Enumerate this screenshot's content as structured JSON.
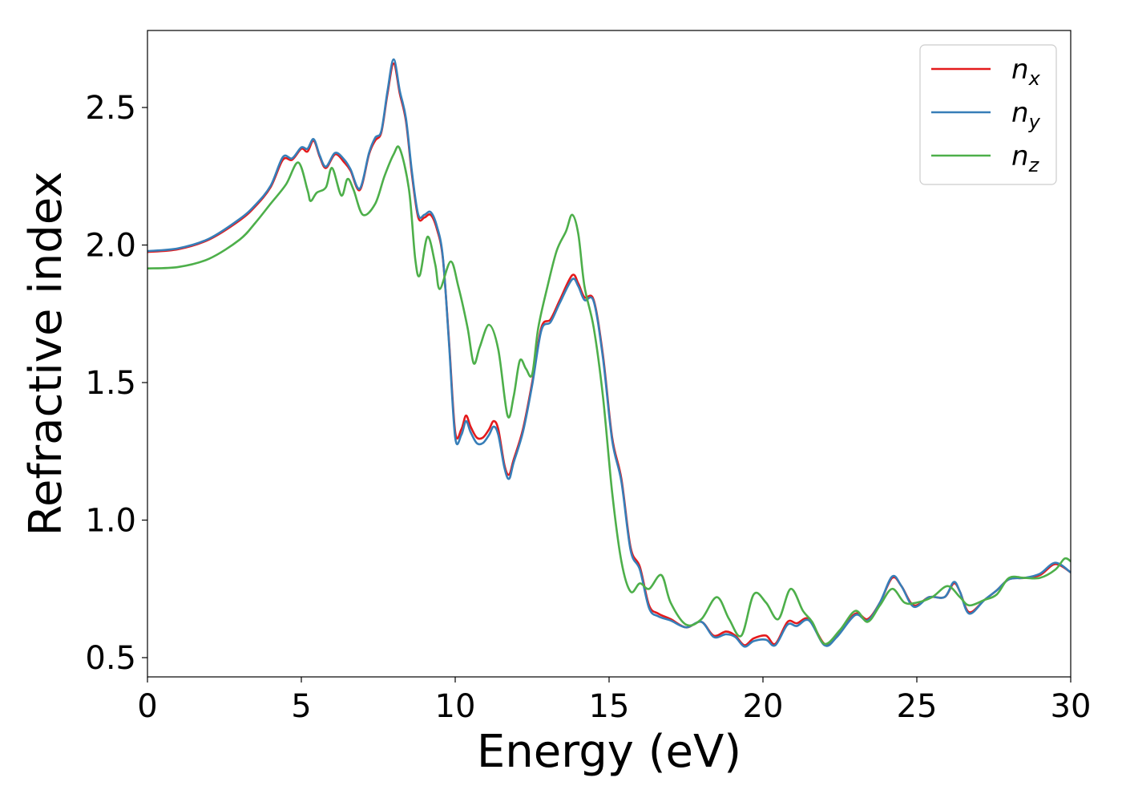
{
  "chart_data": {
    "type": "line",
    "title": "",
    "xlabel": "Energy (eV)",
    "ylabel": "Refractive index",
    "xlim": [
      0,
      30
    ],
    "ylim": [
      0.43,
      2.78
    ],
    "xticks": [
      0,
      5,
      10,
      15,
      20,
      25,
      30
    ],
    "yticks": [
      0.5,
      1.0,
      1.5,
      2.0,
      2.5
    ],
    "xtick_labels": [
      "0",
      "5",
      "10",
      "15",
      "20",
      "25",
      "30"
    ],
    "ytick_labels": [
      "0.5",
      "1.0",
      "1.5",
      "2.0",
      "2.5"
    ],
    "grid": false,
    "legend_position": "top-right",
    "series": [
      {
        "name": "n_x",
        "label_base": "n",
        "label_sub": "x",
        "color": "#e41a1c",
        "points": [
          [
            0,
            1.975
          ],
          [
            1,
            1.985
          ],
          [
            2,
            2.02
          ],
          [
            3,
            2.09
          ],
          [
            3.5,
            2.14
          ],
          [
            4,
            2.21
          ],
          [
            4.4,
            2.31
          ],
          [
            4.7,
            2.31
          ],
          [
            5,
            2.35
          ],
          [
            5.2,
            2.34
          ],
          [
            5.4,
            2.38
          ],
          [
            5.6,
            2.32
          ],
          [
            5.8,
            2.28
          ],
          [
            6.1,
            2.33
          ],
          [
            6.4,
            2.3
          ],
          [
            6.6,
            2.27
          ],
          [
            6.9,
            2.2
          ],
          [
            7.2,
            2.33
          ],
          [
            7.4,
            2.38
          ],
          [
            7.6,
            2.41
          ],
          [
            7.8,
            2.55
          ],
          [
            8.0,
            2.66
          ],
          [
            8.2,
            2.55
          ],
          [
            8.4,
            2.45
          ],
          [
            8.6,
            2.25
          ],
          [
            8.8,
            2.1
          ],
          [
            9.0,
            2.1
          ],
          [
            9.2,
            2.11
          ],
          [
            9.4,
            2.06
          ],
          [
            9.6,
            1.95
          ],
          [
            9.8,
            1.65
          ],
          [
            10.0,
            1.32
          ],
          [
            10.2,
            1.33
          ],
          [
            10.35,
            1.38
          ],
          [
            10.5,
            1.34
          ],
          [
            10.7,
            1.3
          ],
          [
            10.9,
            1.3
          ],
          [
            11.1,
            1.33
          ],
          [
            11.25,
            1.36
          ],
          [
            11.4,
            1.33
          ],
          [
            11.6,
            1.2
          ],
          [
            11.75,
            1.165
          ],
          [
            11.9,
            1.22
          ],
          [
            12.2,
            1.33
          ],
          [
            12.5,
            1.5
          ],
          [
            12.8,
            1.7
          ],
          [
            13.1,
            1.73
          ],
          [
            13.4,
            1.8
          ],
          [
            13.8,
            1.89
          ],
          [
            14.0,
            1.86
          ],
          [
            14.2,
            1.81
          ],
          [
            14.5,
            1.8
          ],
          [
            14.8,
            1.6
          ],
          [
            15.1,
            1.3
          ],
          [
            15.4,
            1.15
          ],
          [
            15.7,
            0.9
          ],
          [
            16.0,
            0.83
          ],
          [
            16.3,
            0.69
          ],
          [
            16.6,
            0.66
          ],
          [
            17.0,
            0.64
          ],
          [
            17.5,
            0.61
          ],
          [
            18.0,
            0.63
          ],
          [
            18.4,
            0.58
          ],
          [
            18.8,
            0.595
          ],
          [
            19.1,
            0.58
          ],
          [
            19.4,
            0.545
          ],
          [
            19.7,
            0.57
          ],
          [
            20.1,
            0.58
          ],
          [
            20.4,
            0.55
          ],
          [
            20.8,
            0.63
          ],
          [
            21.1,
            0.625
          ],
          [
            21.5,
            0.64
          ],
          [
            22.0,
            0.55
          ],
          [
            22.4,
            0.58
          ],
          [
            23.0,
            0.66
          ],
          [
            23.4,
            0.64
          ],
          [
            23.8,
            0.7
          ],
          [
            24.2,
            0.79
          ],
          [
            24.5,
            0.76
          ],
          [
            24.9,
            0.69
          ],
          [
            25.4,
            0.72
          ],
          [
            25.9,
            0.72
          ],
          [
            26.2,
            0.77
          ],
          [
            26.4,
            0.74
          ],
          [
            26.7,
            0.665
          ],
          [
            27.2,
            0.71
          ],
          [
            27.6,
            0.745
          ],
          [
            28.0,
            0.785
          ],
          [
            28.5,
            0.79
          ],
          [
            29.0,
            0.8
          ],
          [
            29.5,
            0.84
          ],
          [
            30,
            0.81
          ]
        ]
      },
      {
        "name": "n_y",
        "label_base": "n",
        "label_sub": "y",
        "color": "#377eb8",
        "points": [
          [
            0,
            1.978
          ],
          [
            1,
            1.988
          ],
          [
            2,
            2.023
          ],
          [
            3,
            2.095
          ],
          [
            3.5,
            2.145
          ],
          [
            4,
            2.215
          ],
          [
            4.4,
            2.32
          ],
          [
            4.7,
            2.315
          ],
          [
            5,
            2.355
          ],
          [
            5.2,
            2.35
          ],
          [
            5.4,
            2.385
          ],
          [
            5.6,
            2.325
          ],
          [
            5.8,
            2.285
          ],
          [
            6.1,
            2.335
          ],
          [
            6.4,
            2.31
          ],
          [
            6.6,
            2.275
          ],
          [
            6.9,
            2.205
          ],
          [
            7.2,
            2.335
          ],
          [
            7.4,
            2.39
          ],
          [
            7.6,
            2.415
          ],
          [
            7.8,
            2.56
          ],
          [
            8.0,
            2.675
          ],
          [
            8.2,
            2.56
          ],
          [
            8.4,
            2.46
          ],
          [
            8.6,
            2.26
          ],
          [
            8.8,
            2.11
          ],
          [
            9.0,
            2.11
          ],
          [
            9.2,
            2.12
          ],
          [
            9.4,
            2.07
          ],
          [
            9.6,
            1.955
          ],
          [
            9.8,
            1.64
          ],
          [
            10.0,
            1.3
          ],
          [
            10.2,
            1.31
          ],
          [
            10.35,
            1.36
          ],
          [
            10.5,
            1.32
          ],
          [
            10.7,
            1.28
          ],
          [
            10.9,
            1.28
          ],
          [
            11.1,
            1.31
          ],
          [
            11.25,
            1.34
          ],
          [
            11.4,
            1.31
          ],
          [
            11.6,
            1.19
          ],
          [
            11.75,
            1.15
          ],
          [
            11.9,
            1.21
          ],
          [
            12.2,
            1.32
          ],
          [
            12.5,
            1.49
          ],
          [
            12.8,
            1.69
          ],
          [
            13.1,
            1.72
          ],
          [
            13.4,
            1.79
          ],
          [
            13.8,
            1.875
          ],
          [
            14.0,
            1.85
          ],
          [
            14.2,
            1.8
          ],
          [
            14.5,
            1.795
          ],
          [
            14.8,
            1.59
          ],
          [
            15.1,
            1.29
          ],
          [
            15.4,
            1.14
          ],
          [
            15.7,
            0.89
          ],
          [
            16.0,
            0.82
          ],
          [
            16.3,
            0.68
          ],
          [
            16.6,
            0.65
          ],
          [
            17.0,
            0.635
          ],
          [
            17.5,
            0.61
          ],
          [
            18.0,
            0.63
          ],
          [
            18.4,
            0.575
          ],
          [
            18.8,
            0.585
          ],
          [
            19.1,
            0.575
          ],
          [
            19.4,
            0.54
          ],
          [
            19.7,
            0.56
          ],
          [
            20.1,
            0.565
          ],
          [
            20.4,
            0.545
          ],
          [
            20.8,
            0.62
          ],
          [
            21.1,
            0.615
          ],
          [
            21.5,
            0.635
          ],
          [
            22.0,
            0.545
          ],
          [
            22.4,
            0.575
          ],
          [
            23.0,
            0.655
          ],
          [
            23.4,
            0.635
          ],
          [
            23.8,
            0.7
          ],
          [
            24.2,
            0.795
          ],
          [
            24.5,
            0.76
          ],
          [
            24.9,
            0.685
          ],
          [
            25.4,
            0.72
          ],
          [
            25.9,
            0.72
          ],
          [
            26.2,
            0.775
          ],
          [
            26.4,
            0.74
          ],
          [
            26.7,
            0.66
          ],
          [
            27.2,
            0.71
          ],
          [
            27.6,
            0.745
          ],
          [
            28.0,
            0.785
          ],
          [
            28.5,
            0.79
          ],
          [
            29.0,
            0.805
          ],
          [
            29.5,
            0.845
          ],
          [
            30,
            0.81
          ]
        ]
      },
      {
        "name": "n_z",
        "label_base": "n",
        "label_sub": "z",
        "color": "#4daf4a",
        "points": [
          [
            0,
            1.915
          ],
          [
            1,
            1.92
          ],
          [
            2,
            1.95
          ],
          [
            3,
            2.02
          ],
          [
            3.5,
            2.08
          ],
          [
            4,
            2.15
          ],
          [
            4.5,
            2.22
          ],
          [
            4.9,
            2.3
          ],
          [
            5.2,
            2.2
          ],
          [
            5.3,
            2.16
          ],
          [
            5.5,
            2.19
          ],
          [
            5.8,
            2.21
          ],
          [
            6.0,
            2.28
          ],
          [
            6.3,
            2.18
          ],
          [
            6.5,
            2.24
          ],
          [
            6.7,
            2.2
          ],
          [
            7.0,
            2.11
          ],
          [
            7.4,
            2.15
          ],
          [
            7.7,
            2.25
          ],
          [
            8.0,
            2.33
          ],
          [
            8.2,
            2.35
          ],
          [
            8.5,
            2.2
          ],
          [
            8.7,
            1.95
          ],
          [
            8.85,
            1.89
          ],
          [
            9.1,
            2.03
          ],
          [
            9.35,
            1.93
          ],
          [
            9.5,
            1.84
          ],
          [
            9.85,
            1.94
          ],
          [
            10.1,
            1.85
          ],
          [
            10.4,
            1.7
          ],
          [
            10.6,
            1.57
          ],
          [
            10.8,
            1.63
          ],
          [
            11.1,
            1.71
          ],
          [
            11.4,
            1.62
          ],
          [
            11.7,
            1.38
          ],
          [
            11.9,
            1.45
          ],
          [
            12.1,
            1.58
          ],
          [
            12.3,
            1.55
          ],
          [
            12.5,
            1.53
          ],
          [
            12.7,
            1.7
          ],
          [
            13.0,
            1.85
          ],
          [
            13.3,
            1.98
          ],
          [
            13.6,
            2.05
          ],
          [
            13.8,
            2.11
          ],
          [
            14.0,
            2.04
          ],
          [
            14.2,
            1.85
          ],
          [
            14.5,
            1.7
          ],
          [
            14.8,
            1.45
          ],
          [
            15.1,
            1.1
          ],
          [
            15.4,
            0.85
          ],
          [
            15.7,
            0.74
          ],
          [
            16.0,
            0.77
          ],
          [
            16.3,
            0.75
          ],
          [
            16.7,
            0.8
          ],
          [
            17.0,
            0.7
          ],
          [
            17.5,
            0.62
          ],
          [
            18.0,
            0.64
          ],
          [
            18.5,
            0.72
          ],
          [
            18.9,
            0.64
          ],
          [
            19.3,
            0.58
          ],
          [
            19.7,
            0.73
          ],
          [
            20.1,
            0.7
          ],
          [
            20.5,
            0.64
          ],
          [
            20.9,
            0.75
          ],
          [
            21.3,
            0.67
          ],
          [
            21.6,
            0.63
          ],
          [
            22.0,
            0.55
          ],
          [
            22.5,
            0.6
          ],
          [
            23.0,
            0.67
          ],
          [
            23.4,
            0.63
          ],
          [
            23.8,
            0.69
          ],
          [
            24.2,
            0.75
          ],
          [
            24.6,
            0.7
          ],
          [
            25.0,
            0.7
          ],
          [
            25.5,
            0.72
          ],
          [
            26.0,
            0.76
          ],
          [
            26.4,
            0.72
          ],
          [
            26.7,
            0.69
          ],
          [
            27.2,
            0.71
          ],
          [
            27.6,
            0.73
          ],
          [
            28.0,
            0.79
          ],
          [
            28.5,
            0.79
          ],
          [
            29.0,
            0.79
          ],
          [
            29.5,
            0.82
          ],
          [
            29.8,
            0.86
          ],
          [
            30,
            0.85
          ]
        ]
      }
    ]
  }
}
